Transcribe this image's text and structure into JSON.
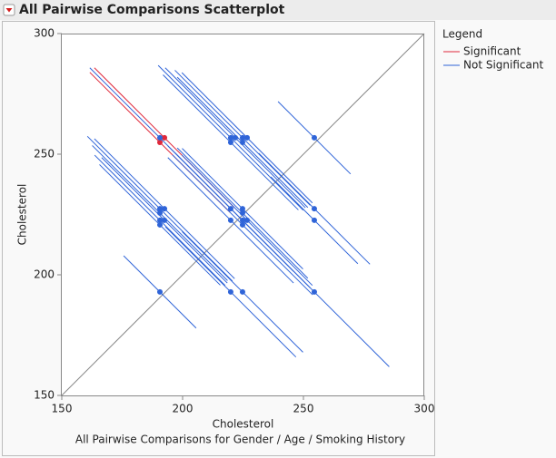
{
  "header": {
    "title": "All Pairwise Comparisons Scatterplot"
  },
  "chart_data": {
    "type": "scatter",
    "x_label": "Cholesterol",
    "x_sublabel": "All Pairwise Comparisons for Gender / Age / Smoking History",
    "y_label": "Cholesterol",
    "xlim": [
      150,
      300
    ],
    "ylim": [
      150,
      300
    ],
    "xticks": [
      150,
      200,
      250,
      300
    ],
    "yticks": [
      150,
      200,
      250,
      300
    ],
    "legend_title": "Legend",
    "series": [
      {
        "name": "Significant",
        "color": "#e0283a",
        "x": [
          192.5,
          190.6
        ],
        "y": [
          256.8,
          254.9
        ],
        "ci": [
          29,
          29
        ]
      },
      {
        "name": "Not Significant",
        "color": "#2f64d8",
        "x": [
          190.6,
          219.9,
          221.8,
          224.8,
          226.7,
          254.5,
          219.9,
          224.8,
          190.6,
          192.5,
          190.6,
          190.6,
          192.5,
          190.6,
          219.9,
          224.8,
          224.8,
          219.9,
          224.8,
          226.7,
          224.8,
          254.5,
          254.5,
          190.6,
          219.9,
          224.8,
          254.5
        ],
        "y": [
          256.8,
          256.8,
          256.8,
          256.8,
          256.8,
          256.8,
          254.9,
          254.9,
          227.4,
          227.4,
          225.6,
          222.6,
          222.6,
          220.7,
          227.4,
          227.4,
          225.6,
          222.6,
          222.6,
          222.6,
          220.7,
          227.4,
          222.6,
          192.9,
          192.9,
          192.9,
          192.9
        ],
        "ci": [
          29,
          30,
          29,
          28,
          27,
          15,
          28,
          27,
          30,
          29,
          28,
          27,
          26,
          25,
          26,
          25,
          27,
          26,
          28,
          27,
          29,
          23,
          18,
          15,
          27,
          25,
          31
        ]
      }
    ]
  }
}
